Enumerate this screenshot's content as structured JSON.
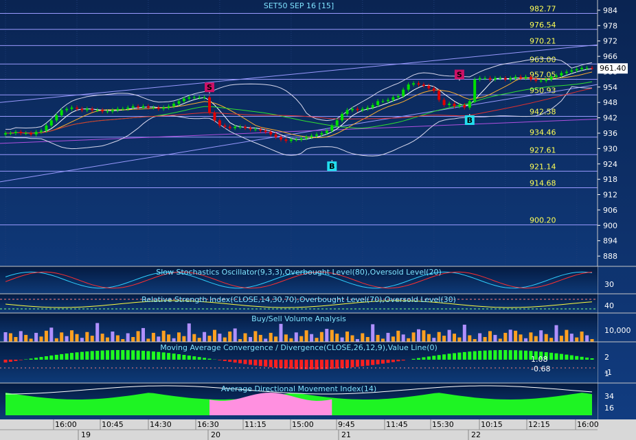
{
  "chart_data": [
    {
      "type": "candlestick",
      "title": "SET50 SEP 16  [15]",
      "y_axis_labels": [
        "984",
        "978",
        "972",
        "966",
        "960",
        "954",
        "948",
        "942",
        "936",
        "930",
        "924",
        "918",
        "912",
        "906",
        "900",
        "894",
        "888"
      ],
      "ylim": [
        884,
        988
      ],
      "last_price": "961.40",
      "levels": [
        "982.77",
        "976.54",
        "970.21",
        "963.00",
        "957.05",
        "950.93",
        "942.58",
        "934.46",
        "927.61",
        "921.14",
        "914.68",
        "900.20"
      ],
      "level_values": [
        982.77,
        976.54,
        970.21,
        963.0,
        957.05,
        950.93,
        942.58,
        934.46,
        927.61,
        921.14,
        914.68,
        900.2
      ],
      "signals": [
        {
          "label": "S",
          "bar": 40,
          "price": 951.5,
          "side": "above"
        },
        {
          "label": "B",
          "bar": 64,
          "price": 925.5,
          "side": "below"
        },
        {
          "label": "S",
          "bar": 89,
          "price": 956.5,
          "side": "above"
        },
        {
          "label": "B",
          "bar": 91,
          "price": 943.5,
          "side": "below"
        }
      ],
      "close": [
        936,
        936,
        936.5,
        936,
        936,
        935.5,
        936.5,
        937,
        939,
        941,
        943,
        945,
        945.5,
        946,
        945.5,
        945,
        945.5,
        945,
        945,
        944.5,
        944.5,
        945,
        945.5,
        945.5,
        946,
        946.5,
        946,
        946.5,
        946,
        946,
        945.5,
        946,
        946.5,
        947.5,
        948.5,
        949.5,
        950,
        950,
        950,
        950,
        944,
        941,
        939,
        938.5,
        938,
        938.5,
        938.5,
        938,
        937.5,
        937.5,
        937,
        936.5,
        935.5,
        934.5,
        933.5,
        933,
        933.5,
        933.5,
        934,
        934.5,
        935,
        935.5,
        936,
        937,
        939,
        941,
        943.5,
        945,
        945.5,
        945,
        945.5,
        946,
        947,
        948.5,
        948.5,
        949,
        950,
        950.5,
        953,
        955,
        955.5,
        955,
        954.5,
        953.5,
        952.5,
        949,
        947,
        947.5,
        946.5,
        947,
        946,
        948.5,
        957,
        957.5,
        957.5,
        957,
        957.5,
        957.5,
        957,
        957.5,
        958,
        957.5,
        958,
        957,
        956.5,
        956.5,
        957,
        958,
        958.5,
        959.5,
        960,
        960.5,
        961,
        961.5,
        961.5,
        961.4
      ]
    },
    {
      "type": "line",
      "title": "Slow Stochastics Oscillator(9,3,3),Overbought Level(80),Oversold Level(20)",
      "y_axis_labels": [
        "30"
      ]
    },
    {
      "type": "line",
      "title": "Relative Strength Index(CLOSE,14,30,70),Overbought Level(70),Oversold Level(30)",
      "y_axis_labels": [
        "40"
      ]
    },
    {
      "type": "bar",
      "title": "Buy/Sell Volume Analysis",
      "y_axis_labels": [
        "10,000"
      ]
    },
    {
      "type": "bar",
      "title": "Moving Average Convergence / Divergence(CLOSE,26,12,9),Value Line(0)",
      "y_axis_labels": [
        "2",
        "1",
        "-1"
      ],
      "values_labels": [
        "1.08",
        "-0.68"
      ]
    },
    {
      "type": "area",
      "title": "Average Directional Movement Index(14)",
      "y_axis_labels": [
        "34",
        "16"
      ]
    }
  ],
  "time_axis": {
    "times": [
      "16:00",
      "10:45",
      "14:30",
      "16:30",
      "11:15",
      "15:00",
      "9:45",
      "11:45",
      "15:30",
      "10:15",
      "12:15",
      "16:00"
    ],
    "dates": [
      "19",
      "20",
      "21",
      "22"
    ]
  },
  "colors": {
    "background": "#0c2a5a",
    "bull": "#00e000",
    "bear": "#e00000",
    "level_line": "#9a9aff",
    "level_text": "#ffff55",
    "title": "#7fe3ff",
    "last_price_bg": "#ffffff",
    "sell_marker": "#cc1166",
    "buy_marker": "#22ddee"
  }
}
